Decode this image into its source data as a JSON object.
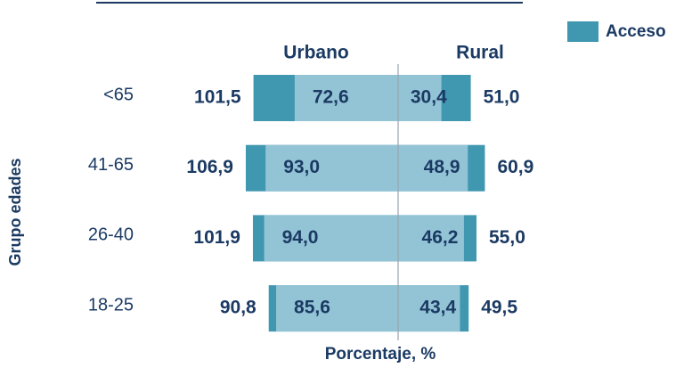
{
  "chart_data": {
    "type": "butterfly",
    "xlabel": "Porcentaje, %",
    "ylabel": "Grupo edades",
    "categories": [
      "<65",
      "41-65",
      "26-40",
      "18-25"
    ],
    "panels": [
      {
        "name": "Urbano",
        "side": "left",
        "total": [
          101.5,
          106.9,
          101.9,
          90.8
        ],
        "total_labels": [
          "101,5",
          "106,9",
          "101,9",
          "90,8"
        ],
        "inner": [
          72.6,
          93.0,
          94.0,
          85.6
        ],
        "inner_labels": [
          "72,6",
          "93,0",
          "94,0",
          "85,6"
        ]
      },
      {
        "name": "Rural",
        "side": "right",
        "total": [
          51.0,
          60.9,
          55.0,
          49.5
        ],
        "total_labels": [
          "51,0",
          "60,9",
          "55,0",
          "49,5"
        ],
        "inner": [
          30.4,
          48.9,
          46.2,
          43.4
        ],
        "inner_labels": [
          "30,4",
          "48,9",
          "46,2",
          "43,4"
        ]
      }
    ],
    "total_color": "#3f97b0",
    "inner_color": "#93c4d6",
    "legend": [
      {
        "name": "Acceso",
        "color": "#3f97b0"
      }
    ]
  }
}
